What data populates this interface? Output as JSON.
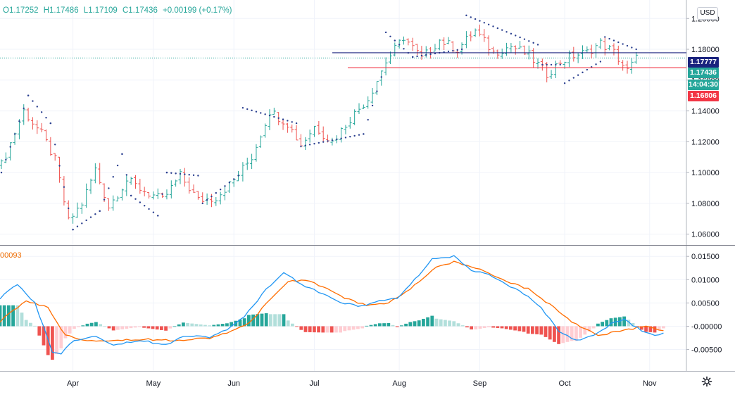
{
  "header": {
    "open": "O1.17252",
    "high": "H1.17486",
    "low": "L1.17109",
    "close": "C1.17436",
    "change": "+0.00199 (+0.17%)"
  },
  "currency_button": "USD",
  "macd_value": "00093",
  "price_tags": {
    "resistance": "1.17777",
    "last": "1.17436",
    "countdown": "14:04:30",
    "support": "1.16806"
  },
  "colors": {
    "up": "#26a69a",
    "down": "#ef5350",
    "sar": "#2a3f8f",
    "macd_line": "#2196f3",
    "signal_line": "#ff6d00",
    "resistance_line": "#1a237e",
    "support_line": "#f23645",
    "hist_up_strong": "#26a69a",
    "hist_up_weak": "#b2dfdb",
    "hist_down_strong": "#ef5350",
    "hist_down_weak": "#ffcdd2"
  },
  "icons": {
    "settings": "gear-icon"
  },
  "chart_data": [
    {
      "type": "candlestick",
      "title": "",
      "x_axis_labels": [
        "Apr",
        "May",
        "Jun",
        "Jul",
        "Aug",
        "Sep",
        "Oct",
        "Nov"
      ],
      "y_axis_ticks": [
        "1.20000",
        "1.18000",
        "1.16000",
        "1.14000",
        "1.12000",
        "1.10000",
        "1.08000",
        "1.06000"
      ],
      "ylim": [
        1.053,
        1.212
      ],
      "grid": true,
      "close_path": [
        [
          0,
          1.105
        ],
        [
          5,
          1.14
        ],
        [
          9,
          1.125
        ],
        [
          12,
          1.108
        ],
        [
          15,
          1.068
        ],
        [
          18,
          1.08
        ],
        [
          21,
          1.102
        ],
        [
          24,
          1.078
        ],
        [
          28,
          1.095
        ],
        [
          32,
          1.088
        ],
        [
          36,
          1.082
        ],
        [
          40,
          1.098
        ],
        [
          44,
          1.082
        ],
        [
          48,
          1.084
        ],
        [
          52,
          1.095
        ],
        [
          56,
          1.11
        ],
        [
          60,
          1.14
        ],
        [
          64,
          1.132
        ],
        [
          67,
          1.118
        ],
        [
          70,
          1.13
        ],
        [
          74,
          1.12
        ],
        [
          78,
          1.135
        ],
        [
          82,
          1.148
        ],
        [
          86,
          1.172
        ],
        [
          90,
          1.188
        ],
        [
          94,
          1.174
        ],
        [
          98,
          1.186
        ],
        [
          102,
          1.18
        ],
        [
          106,
          1.192
        ],
        [
          110,
          1.178
        ],
        [
          114,
          1.182
        ],
        [
          118,
          1.176
        ],
        [
          122,
          1.164
        ],
        [
          125,
          1.172
        ],
        [
          128,
          1.176
        ],
        [
          131,
          1.178
        ],
        [
          134,
          1.184
        ],
        [
          137,
          1.178
        ],
        [
          140,
          1.166
        ],
        [
          142,
          1.174
        ]
      ],
      "parabolic_sar": [
        [
          0,
          1.1
        ],
        [
          6,
          1.15
        ],
        [
          11,
          1.132
        ],
        [
          16,
          1.063
        ],
        [
          22,
          1.075
        ],
        [
          27,
          1.112
        ],
        [
          29,
          1.085
        ],
        [
          35,
          1.072
        ],
        [
          37,
          1.1
        ],
        [
          44,
          1.098
        ],
        [
          45,
          1.08
        ],
        [
          53,
          1.098
        ],
        [
          54,
          1.142
        ],
        [
          66,
          1.132
        ],
        [
          67,
          1.117
        ],
        [
          81,
          1.125
        ],
        [
          85,
          1.162
        ],
        [
          86,
          1.191
        ],
        [
          92,
          1.175
        ],
        [
          103,
          1.18
        ],
        [
          104,
          1.202
        ],
        [
          120,
          1.183
        ],
        [
          121,
          1.17
        ],
        [
          125,
          1.17
        ],
        [
          126,
          1.158
        ],
        [
          134,
          1.172
        ],
        [
          135,
          1.188
        ],
        [
          142,
          1.18
        ]
      ],
      "horizontal_lines": [
        {
          "price": 1.17777,
          "color": "#1a237e",
          "label": "resistance"
        },
        {
          "price": 1.16806,
          "color": "#f23645",
          "label": "support"
        }
      ]
    },
    {
      "type": "macd",
      "y_axis_ticks": [
        "0.01500",
        "0.01000",
        "0.00500",
        "-0.00000",
        "-0.00500"
      ],
      "ylim": [
        -0.0096,
        0.0173
      ],
      "macd_path": [
        [
          0,
          0.006
        ],
        [
          4,
          0.009
        ],
        [
          8,
          0.005
        ],
        [
          12,
          -0.0055
        ],
        [
          14,
          -0.0058
        ],
        [
          17,
          -0.003
        ],
        [
          22,
          -0.002
        ],
        [
          26,
          -0.004
        ],
        [
          32,
          -0.003
        ],
        [
          38,
          -0.004
        ],
        [
          42,
          -0.002
        ],
        [
          48,
          -0.0023
        ],
        [
          52,
          -0.0008
        ],
        [
          56,
          0.002
        ],
        [
          61,
          0.008
        ],
        [
          65,
          0.0115
        ],
        [
          69,
          0.009
        ],
        [
          74,
          0.007
        ],
        [
          78,
          0.005
        ],
        [
          83,
          0.0043
        ],
        [
          87,
          0.0055
        ],
        [
          91,
          0.006
        ],
        [
          96,
          0.011
        ],
        [
          99,
          0.0145
        ],
        [
          104,
          0.015
        ],
        [
          108,
          0.012
        ],
        [
          112,
          0.011
        ],
        [
          116,
          0.009
        ],
        [
          120,
          0.007
        ],
        [
          124,
          0.004
        ],
        [
          128,
          -0.001
        ],
        [
          132,
          -0.003
        ],
        [
          136,
          -0.002
        ],
        [
          140,
          0.0005
        ],
        [
          143,
          0.0015
        ],
        [
          147,
          -0.001
        ],
        [
          150,
          -0.002
        ],
        [
          152,
          -0.0015
        ]
      ],
      "signal_path": [
        [
          0,
          0.001
        ],
        [
          6,
          0.0055
        ],
        [
          11,
          0.004
        ],
        [
          15,
          -0.002
        ],
        [
          20,
          -0.003
        ],
        [
          26,
          -0.003
        ],
        [
          33,
          -0.0028
        ],
        [
          40,
          -0.003
        ],
        [
          48,
          -0.0025
        ],
        [
          52,
          -0.0015
        ],
        [
          57,
          0.0005
        ],
        [
          62,
          0.006
        ],
        [
          66,
          0.0095
        ],
        [
          70,
          0.01
        ],
        [
          74,
          0.0085
        ],
        [
          79,
          0.006
        ],
        [
          84,
          0.0045
        ],
        [
          89,
          0.005
        ],
        [
          94,
          0.008
        ],
        [
          100,
          0.0128
        ],
        [
          104,
          0.0138
        ],
        [
          109,
          0.0125
        ],
        [
          115,
          0.01
        ],
        [
          121,
          0.008
        ],
        [
          127,
          0.004
        ],
        [
          131,
          0.001
        ],
        [
          137,
          -0.002
        ],
        [
          142,
          -0.001
        ],
        [
          148,
          0.0
        ],
        [
          152,
          -0.001
        ]
      ]
    }
  ]
}
